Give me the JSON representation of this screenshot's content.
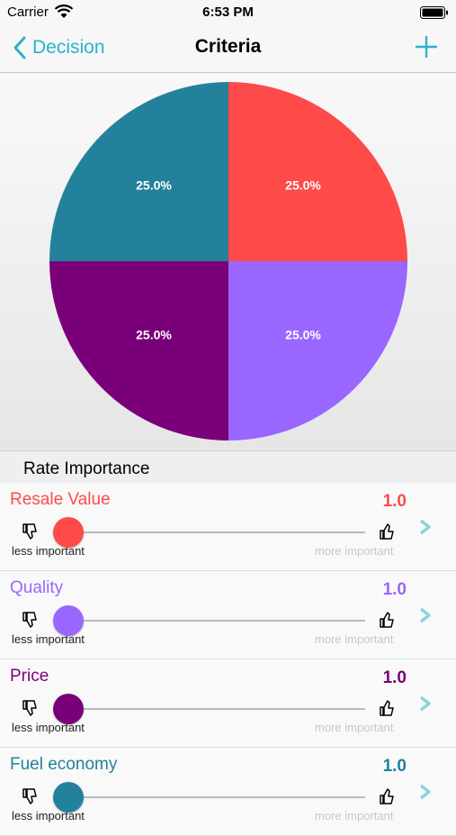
{
  "status_bar": {
    "carrier": "Carrier",
    "time": "6:53 PM"
  },
  "nav": {
    "back_label": "Decision",
    "title": "Criteria",
    "accent_color": "#2ab3c6"
  },
  "chart_data": {
    "type": "pie",
    "slices": [
      {
        "name": "Resale Value",
        "value": 25.0,
        "label": "25.0%",
        "color": "#fe4a49"
      },
      {
        "name": "Quality",
        "value": 25.0,
        "label": "25.0%",
        "color": "#9966ff"
      },
      {
        "name": "Price",
        "value": 25.0,
        "label": "25.0%",
        "color": "#7a007a"
      },
      {
        "name": "Fuel economy",
        "value": 25.0,
        "label": "25.0%",
        "color": "#24819c"
      }
    ]
  },
  "section": {
    "title": "Rate Importance"
  },
  "criteria": [
    {
      "name": "Resale Value",
      "value": "1.0",
      "color": "#fe4a49",
      "slider_fraction": 0.0,
      "less_label": "less important",
      "more_label": "more important"
    },
    {
      "name": "Quality",
      "value": "1.0",
      "color": "#9966ff",
      "slider_fraction": 0.0,
      "less_label": "less important",
      "more_label": "more important"
    },
    {
      "name": "Price",
      "value": "1.0",
      "color": "#7a007a",
      "slider_fraction": 0.0,
      "less_label": "less important",
      "more_label": "more important"
    },
    {
      "name": "Fuel economy",
      "value": "1.0",
      "color": "#24819c",
      "slider_fraction": 0.0,
      "less_label": "less important",
      "more_label": "more important"
    }
  ]
}
